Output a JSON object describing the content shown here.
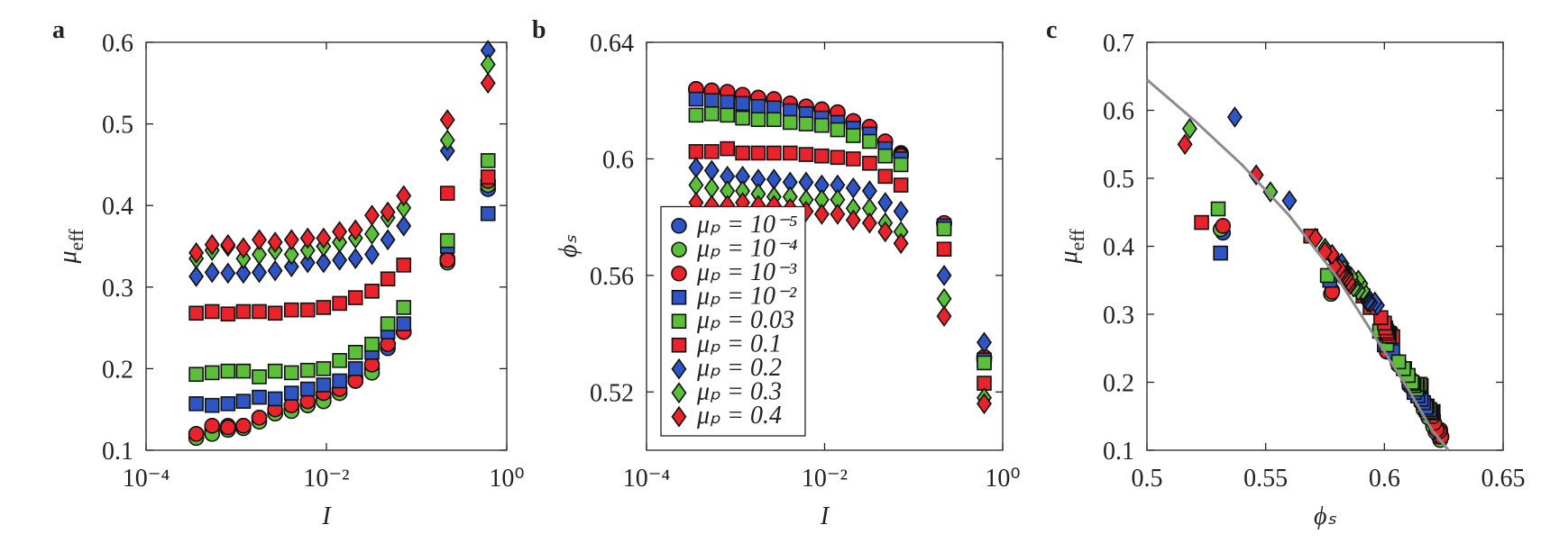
{
  "chart_data": [
    {
      "type": "scatter",
      "panel": "a",
      "xlabel": "I",
      "ylabel": "μ",
      "ylabel_sub": "eff",
      "log_x": true,
      "xlim": [
        0.0001,
        1
      ],
      "ylim": [
        0.1,
        0.6
      ],
      "xticks": [
        {
          "value": 0.0001,
          "label": "10⁻⁴"
        },
        {
          "value": 0.01,
          "label": "10⁻²"
        },
        {
          "value": 1,
          "label": "10⁰"
        }
      ],
      "yticks": [
        0.1,
        0.2,
        0.3,
        0.4,
        0.5,
        0.6
      ],
      "x": [
        0.00036,
        0.00054,
        0.00081,
        0.0012,
        0.0018,
        0.0027,
        0.0041,
        0.0062,
        0.0093,
        0.014,
        0.021,
        0.032,
        0.048,
        0.072,
        0.22,
        0.62
      ],
      "series": [
        {
          "color": "#2f55c4",
          "marker": "o",
          "values": [
            0.12,
            0.125,
            0.13,
            0.13,
            0.14,
            0.145,
            0.15,
            0.155,
            0.165,
            0.175,
            0.19,
            0.2,
            0.225,
            0.245,
            0.335,
            0.42
          ]
        },
        {
          "color": "#5cbf3a",
          "marker": "o",
          "values": [
            0.115,
            0.12,
            0.125,
            0.127,
            0.135,
            0.145,
            0.148,
            0.155,
            0.16,
            0.17,
            0.185,
            0.195,
            0.23,
            0.245,
            0.33,
            0.425
          ]
        },
        {
          "color": "#e8232b",
          "marker": "o",
          "values": [
            0.12,
            0.13,
            0.128,
            0.13,
            0.14,
            0.15,
            0.155,
            0.16,
            0.17,
            0.175,
            0.185,
            0.205,
            0.23,
            0.245,
            0.333,
            0.43
          ]
        },
        {
          "color": "#2f55c4",
          "marker": "s",
          "values": [
            0.157,
            0.155,
            0.157,
            0.16,
            0.165,
            0.163,
            0.17,
            0.175,
            0.18,
            0.185,
            0.2,
            0.22,
            0.245,
            0.255,
            0.35,
            0.39
          ]
        },
        {
          "color": "#5cbf3a",
          "marker": "s",
          "values": [
            0.193,
            0.195,
            0.197,
            0.197,
            0.19,
            0.197,
            0.195,
            0.198,
            0.2,
            0.21,
            0.22,
            0.23,
            0.255,
            0.275,
            0.357,
            0.455
          ]
        },
        {
          "color": "#e8232b",
          "marker": "s",
          "values": [
            0.268,
            0.27,
            0.267,
            0.27,
            0.27,
            0.268,
            0.272,
            0.272,
            0.275,
            0.28,
            0.287,
            0.295,
            0.31,
            0.327,
            0.415,
            0.435
          ]
        },
        {
          "color": "#2f55c4",
          "marker": "d",
          "values": [
            0.313,
            0.318,
            0.317,
            0.317,
            0.318,
            0.32,
            0.325,
            0.33,
            0.33,
            0.333,
            0.335,
            0.34,
            0.358,
            0.375,
            0.467,
            0.59
          ]
        },
        {
          "color": "#5cbf3a",
          "marker": "d",
          "values": [
            0.335,
            0.345,
            0.35,
            0.335,
            0.34,
            0.345,
            0.34,
            0.345,
            0.35,
            0.355,
            0.36,
            0.365,
            0.385,
            0.397,
            0.48,
            0.573
          ]
        },
        {
          "color": "#e8232b",
          "marker": "d",
          "values": [
            0.342,
            0.352,
            0.352,
            0.348,
            0.358,
            0.355,
            0.358,
            0.36,
            0.36,
            0.368,
            0.37,
            0.388,
            0.392,
            0.412,
            0.505,
            0.55
          ]
        }
      ]
    },
    {
      "type": "scatter",
      "panel": "b",
      "xlabel": "I",
      "ylabel": "ϕₛ",
      "log_x": true,
      "legend": "lower left",
      "xlim": [
        0.0001,
        1
      ],
      "ylim": [
        0.5,
        0.64
      ],
      "xticks": [
        {
          "value": 0.0001,
          "label": "10⁻⁴"
        },
        {
          "value": 0.01,
          "label": "10⁻²"
        },
        {
          "value": 1,
          "label": "10⁰"
        }
      ],
      "yticks": [
        0.52,
        0.56,
        0.6,
        0.64
      ],
      "x": [
        0.00036,
        0.00054,
        0.00081,
        0.0012,
        0.0018,
        0.0027,
        0.0041,
        0.0062,
        0.0093,
        0.014,
        0.021,
        0.032,
        0.048,
        0.072,
        0.22,
        0.62
      ],
      "series": [
        {
          "name": "μₚ = 10⁻⁵",
          "color": "#2f55c4",
          "marker": "o",
          "values": [
            0.624,
            0.6235,
            0.623,
            0.622,
            0.621,
            0.6205,
            0.619,
            0.618,
            0.617,
            0.616,
            0.613,
            0.611,
            0.606,
            0.602,
            0.578,
            0.532
          ]
        },
        {
          "name": "μₚ = 10⁻⁴",
          "color": "#5cbf3a",
          "marker": "o",
          "values": [
            0.6235,
            0.623,
            0.6225,
            0.6215,
            0.6205,
            0.62,
            0.6185,
            0.6175,
            0.6165,
            0.6155,
            0.6125,
            0.6105,
            0.6055,
            0.6015,
            0.5775,
            0.531
          ]
        },
        {
          "name": "μₚ = 10⁻³",
          "color": "#e8232b",
          "marker": "o",
          "values": [
            0.624,
            0.6235,
            0.623,
            0.622,
            0.621,
            0.6205,
            0.619,
            0.618,
            0.617,
            0.616,
            0.613,
            0.611,
            0.606,
            0.601,
            0.578,
            0.532
          ]
        },
        {
          "name": "μₚ = 10⁻²",
          "color": "#2f55c4",
          "marker": "s",
          "values": [
            0.6205,
            0.62,
            0.6195,
            0.619,
            0.618,
            0.6175,
            0.6165,
            0.6155,
            0.614,
            0.6125,
            0.6105,
            0.6085,
            0.6035,
            0.6,
            0.577,
            0.531
          ]
        },
        {
          "name": "μₚ = 0.03",
          "color": "#5cbf3a",
          "marker": "s",
          "values": [
            0.615,
            0.6155,
            0.615,
            0.614,
            0.6135,
            0.6135,
            0.6125,
            0.612,
            0.6115,
            0.61,
            0.608,
            0.606,
            0.601,
            0.598,
            0.576,
            0.53
          ]
        },
        {
          "name": "μₚ = 0.1",
          "color": "#e8232b",
          "marker": "s",
          "values": [
            0.6025,
            0.6025,
            0.6035,
            0.602,
            0.602,
            0.602,
            0.602,
            0.6015,
            0.601,
            0.6005,
            0.6,
            0.5985,
            0.594,
            0.591,
            0.569,
            0.523
          ]
        },
        {
          "name": "μₚ = 0.2",
          "color": "#2f55c4",
          "marker": "d",
          "values": [
            0.597,
            0.596,
            0.594,
            0.594,
            0.593,
            0.593,
            0.592,
            0.592,
            0.591,
            0.591,
            0.59,
            0.589,
            0.585,
            0.582,
            0.56,
            0.537
          ]
        },
        {
          "name": "μₚ = 0.3",
          "color": "#5cbf3a",
          "marker": "d",
          "values": [
            0.591,
            0.59,
            0.589,
            0.589,
            0.588,
            0.587,
            0.587,
            0.586,
            0.586,
            0.586,
            0.583,
            0.583,
            0.578,
            0.575,
            0.552,
            0.518
          ]
        },
        {
          "name": "μₚ = 0.4",
          "color": "#e8232b",
          "marker": "d",
          "values": [
            0.585,
            0.584,
            0.584,
            0.585,
            0.584,
            0.584,
            0.583,
            0.582,
            0.581,
            0.581,
            0.579,
            0.578,
            0.575,
            0.571,
            0.546,
            0.516
          ]
        }
      ]
    },
    {
      "type": "scatter",
      "panel": "c",
      "xlabel": "ϕₛ",
      "ylabel": "μ",
      "ylabel_sub": "eff",
      "log_x": false,
      "xlim": [
        0.5,
        0.65
      ],
      "ylim": [
        0.1,
        0.7
      ],
      "xticks": [
        0.5,
        0.55,
        0.6,
        0.65
      ],
      "yticks": [
        0.1,
        0.2,
        0.3,
        0.4,
        0.5,
        0.6,
        0.7
      ],
      "series": [
        {
          "color": "#2f55c4",
          "marker": "o",
          "x": [
            0.624,
            0.6235,
            0.623,
            0.622,
            0.621,
            0.6205,
            0.619,
            0.618,
            0.617,
            0.616,
            0.613,
            0.611,
            0.606,
            0.602,
            0.578,
            0.532
          ],
          "values": [
            0.12,
            0.125,
            0.13,
            0.13,
            0.14,
            0.145,
            0.15,
            0.155,
            0.165,
            0.175,
            0.19,
            0.2,
            0.225,
            0.245,
            0.335,
            0.42
          ]
        },
        {
          "color": "#5cbf3a",
          "marker": "o",
          "x": [
            0.6235,
            0.623,
            0.6225,
            0.6215,
            0.6205,
            0.62,
            0.6185,
            0.6175,
            0.6165,
            0.6155,
            0.6125,
            0.6105,
            0.6055,
            0.6015,
            0.5775,
            0.531
          ],
          "values": [
            0.115,
            0.12,
            0.125,
            0.127,
            0.135,
            0.145,
            0.148,
            0.155,
            0.16,
            0.17,
            0.185,
            0.195,
            0.23,
            0.245,
            0.33,
            0.425
          ]
        },
        {
          "color": "#e8232b",
          "marker": "o",
          "x": [
            0.624,
            0.6235,
            0.623,
            0.622,
            0.621,
            0.6205,
            0.619,
            0.618,
            0.617,
            0.616,
            0.613,
            0.611,
            0.606,
            0.601,
            0.578,
            0.532
          ],
          "values": [
            0.12,
            0.13,
            0.128,
            0.13,
            0.14,
            0.15,
            0.155,
            0.16,
            0.17,
            0.175,
            0.185,
            0.205,
            0.23,
            0.245,
            0.333,
            0.43
          ]
        },
        {
          "color": "#2f55c4",
          "marker": "s",
          "x": [
            0.6205,
            0.62,
            0.6195,
            0.619,
            0.618,
            0.6175,
            0.6165,
            0.6155,
            0.614,
            0.6125,
            0.6105,
            0.6085,
            0.6035,
            0.6,
            0.577,
            0.531
          ],
          "values": [
            0.157,
            0.155,
            0.157,
            0.16,
            0.165,
            0.163,
            0.17,
            0.175,
            0.18,
            0.185,
            0.2,
            0.22,
            0.245,
            0.255,
            0.35,
            0.39
          ]
        },
        {
          "color": "#5cbf3a",
          "marker": "s",
          "x": [
            0.615,
            0.6155,
            0.615,
            0.614,
            0.6135,
            0.6135,
            0.6125,
            0.612,
            0.6115,
            0.61,
            0.608,
            0.606,
            0.601,
            0.598,
            0.576,
            0.53
          ],
          "values": [
            0.193,
            0.195,
            0.197,
            0.197,
            0.19,
            0.197,
            0.195,
            0.198,
            0.2,
            0.21,
            0.22,
            0.23,
            0.255,
            0.275,
            0.357,
            0.455
          ]
        },
        {
          "color": "#e8232b",
          "marker": "s",
          "x": [
            0.6025,
            0.6025,
            0.6035,
            0.602,
            0.602,
            0.602,
            0.602,
            0.6015,
            0.601,
            0.6005,
            0.6,
            0.5985,
            0.594,
            0.591,
            0.569,
            0.523
          ],
          "values": [
            0.268,
            0.27,
            0.267,
            0.27,
            0.27,
            0.268,
            0.272,
            0.272,
            0.275,
            0.28,
            0.287,
            0.295,
            0.31,
            0.327,
            0.415,
            0.435
          ]
        },
        {
          "color": "#2f55c4",
          "marker": "d",
          "x": [
            0.597,
            0.596,
            0.594,
            0.594,
            0.593,
            0.593,
            0.592,
            0.592,
            0.591,
            0.591,
            0.59,
            0.589,
            0.585,
            0.582,
            0.56,
            0.537
          ],
          "values": [
            0.313,
            0.318,
            0.317,
            0.317,
            0.318,
            0.32,
            0.325,
            0.33,
            0.33,
            0.333,
            0.335,
            0.34,
            0.358,
            0.375,
            0.467,
            0.59
          ]
        },
        {
          "color": "#5cbf3a",
          "marker": "d",
          "x": [
            0.591,
            0.59,
            0.589,
            0.589,
            0.588,
            0.587,
            0.587,
            0.586,
            0.586,
            0.586,
            0.583,
            0.583,
            0.578,
            0.575,
            0.552,
            0.518
          ],
          "values": [
            0.335,
            0.345,
            0.35,
            0.335,
            0.34,
            0.345,
            0.34,
            0.345,
            0.35,
            0.355,
            0.36,
            0.365,
            0.385,
            0.397,
            0.48,
            0.573
          ]
        },
        {
          "color": "#e8232b",
          "marker": "d",
          "x": [
            0.585,
            0.584,
            0.584,
            0.585,
            0.584,
            0.584,
            0.583,
            0.582,
            0.581,
            0.581,
            0.579,
            0.578,
            0.575,
            0.571,
            0.546,
            0.516
          ],
          "values": [
            0.342,
            0.352,
            0.352,
            0.348,
            0.358,
            0.355,
            0.358,
            0.36,
            0.36,
            0.368,
            0.37,
            0.388,
            0.392,
            0.412,
            0.505,
            0.55
          ]
        },
        {
          "color": "#8c8c8c",
          "marker": "line",
          "x": [
            0.5,
            0.52,
            0.54,
            0.56,
            0.58,
            0.6,
            0.61,
            0.62,
            0.627
          ],
          "values": [
            0.645,
            0.585,
            0.52,
            0.445,
            0.355,
            0.245,
            0.19,
            0.13,
            0.1
          ]
        }
      ]
    }
  ]
}
